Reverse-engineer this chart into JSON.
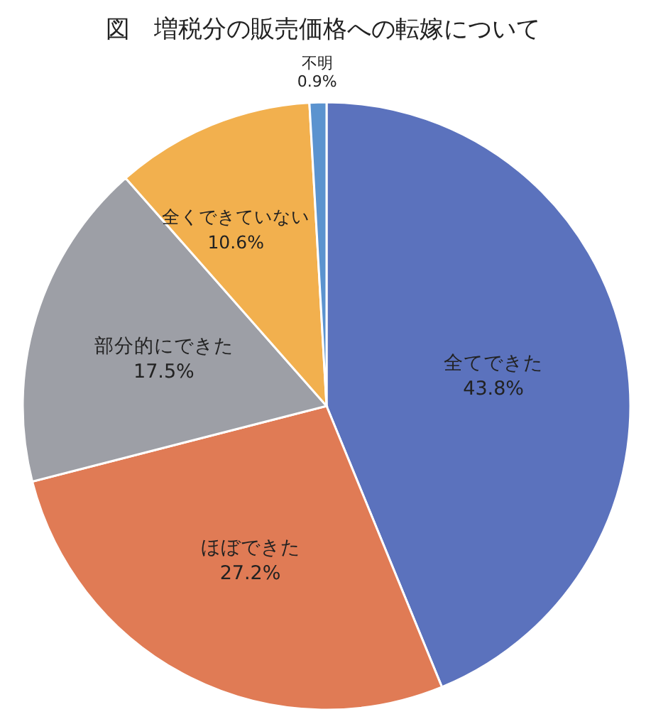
{
  "chart_data": {
    "type": "pie",
    "title": "図　増税分の販売価格への転嫁について",
    "categories": [
      "全てできた",
      "ほぼできた",
      "部分的にできた",
      "全くできていない",
      "不明"
    ],
    "values": [
      43.8,
      27.2,
      17.5,
      10.6,
      0.9
    ],
    "value_labels": [
      "43.8%",
      "27.2%",
      "17.5%",
      "10.6%",
      "0.9%"
    ],
    "colors": [
      "#5b72bd",
      "#e07b55",
      "#9d9fa6",
      "#f2b04e",
      "#5b93cf"
    ],
    "legend": false
  }
}
